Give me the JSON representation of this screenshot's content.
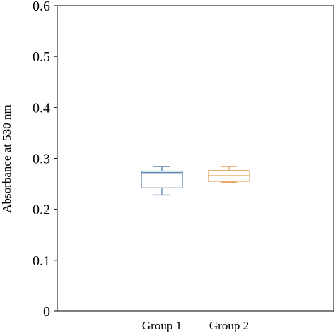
{
  "chart_data": {
    "type": "box",
    "ylabel": "Absorbance at 530 nm",
    "xlabel": "",
    "ylim": [
      0,
      0.6
    ],
    "yticks": [
      0,
      0.1,
      0.2,
      0.3,
      0.4,
      0.5,
      0.6
    ],
    "yticklabels": [
      "0",
      "0.1",
      "0.2",
      "0.3",
      "0.4",
      "0.5",
      "0.6"
    ],
    "grid": false,
    "categories": [
      "Group 1",
      "Group 2"
    ],
    "boxes": [
      {
        "category": "Group 1",
        "min": 0.228,
        "q1": 0.242,
        "median": 0.272,
        "q3": 0.275,
        "max": 0.284,
        "color": "#5b84b1"
      },
      {
        "category": "Group 2",
        "min": 0.253,
        "q1": 0.255,
        "median": 0.266,
        "q3": 0.276,
        "max": 0.284,
        "color": "#e6a15c"
      }
    ]
  }
}
